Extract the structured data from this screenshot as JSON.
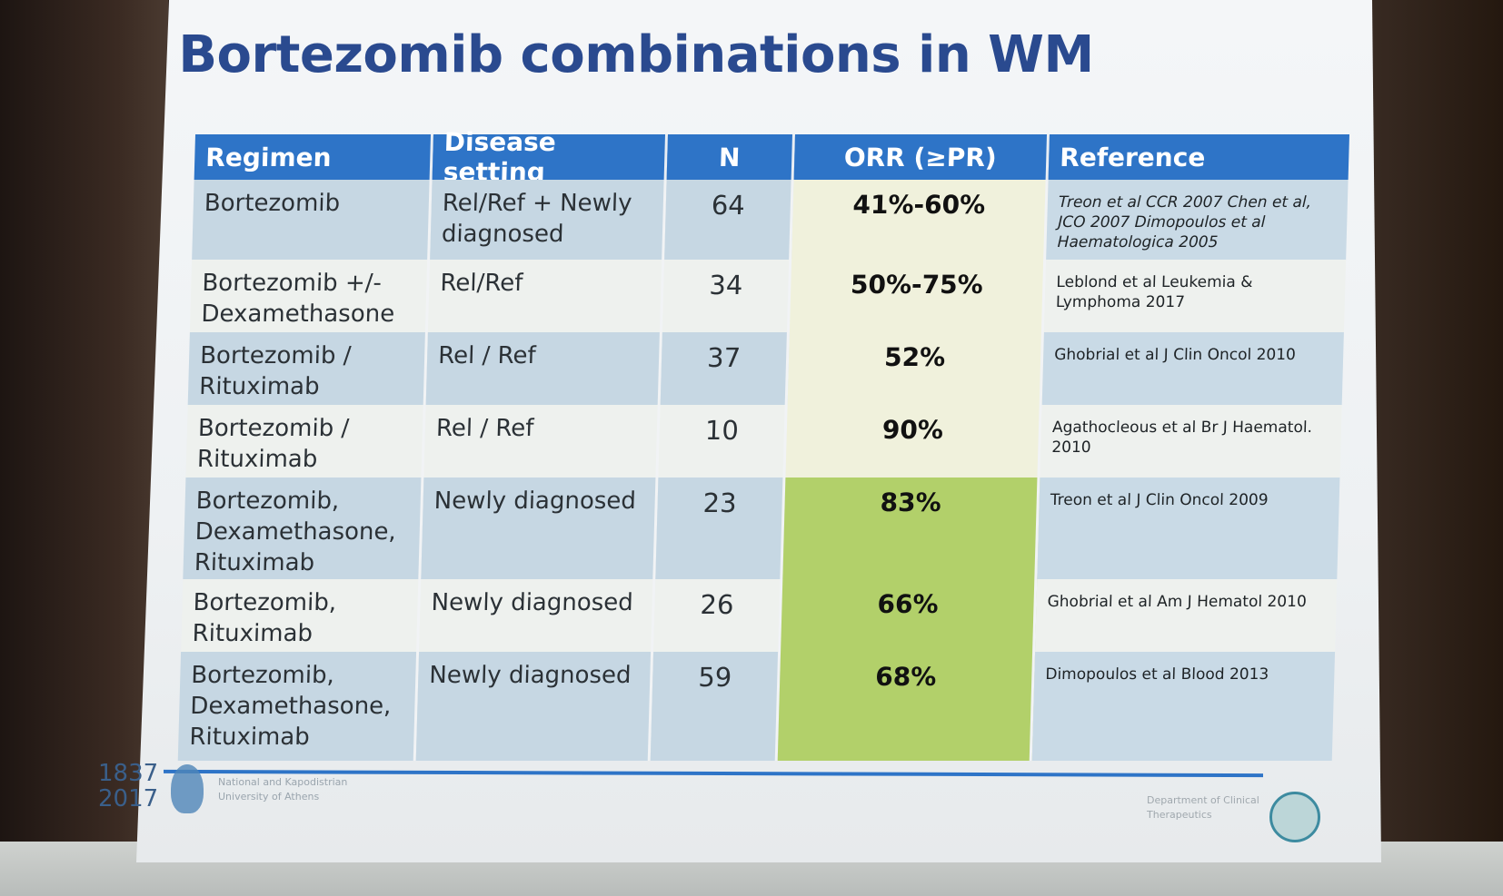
{
  "slide": {
    "title": "Bortezomib combinations in WM",
    "columns": [
      "Regimen",
      "Disease setting",
      "N",
      "ORR (≥PR)",
      "Reference"
    ],
    "rows": [
      {
        "regimen": "Bortezomib",
        "setting": "Rel/Ref + Newly diagnosed",
        "n": "64",
        "orr": "41%-60%",
        "reference": "Treon et al CCR 2007 Chen et al, JCO 2007 Dimopoulos et al Haematologica 2005"
      },
      {
        "regimen": "Bortezomib +/- Dexamethasone",
        "setting": "Rel/Ref",
        "n": "34",
        "orr": "50%-75%",
        "reference": "Leblond et al Leukemia & Lymphoma 2017"
      },
      {
        "regimen": "Bortezomib / Rituximab",
        "setting": "Rel / Ref",
        "n": "37",
        "orr": "52%",
        "reference": "Ghobrial et al J Clin Oncol 2010"
      },
      {
        "regimen": "Bortezomib / Rituximab",
        "setting": "Rel / Ref",
        "n": "10",
        "orr": "90%",
        "reference": "Agathocleous et al Br J Haematol. 2010"
      },
      {
        "regimen": "Bortezomib, Dexamethasone, Rituximab",
        "setting": "Newly diagnosed",
        "n": "23",
        "orr": "83%",
        "reference": "Treon et al J Clin Oncol 2009"
      },
      {
        "regimen": "Bortezomib, Rituximab",
        "setting": "Newly diagnosed",
        "n": "26",
        "orr": "66%",
        "reference": "Ghobrial et al Am J Hematol 2010"
      },
      {
        "regimen": "Bortezomib, Dexamethasone, Rituximab",
        "setting": "Newly diagnosed",
        "n": "59",
        "orr": "68%",
        "reference": "Dimopoulos et al Blood 2013"
      }
    ]
  },
  "footer": {
    "years": "1837 2017",
    "university": "National and Kapodistrian University of Athens",
    "department": "Department of Clinical Therapeutics"
  },
  "colors": {
    "header_blue": "#2e74c7",
    "title_blue": "#2a4a8f",
    "row_shade": "#c6d7e3",
    "orr_green": "#b2d06a"
  }
}
